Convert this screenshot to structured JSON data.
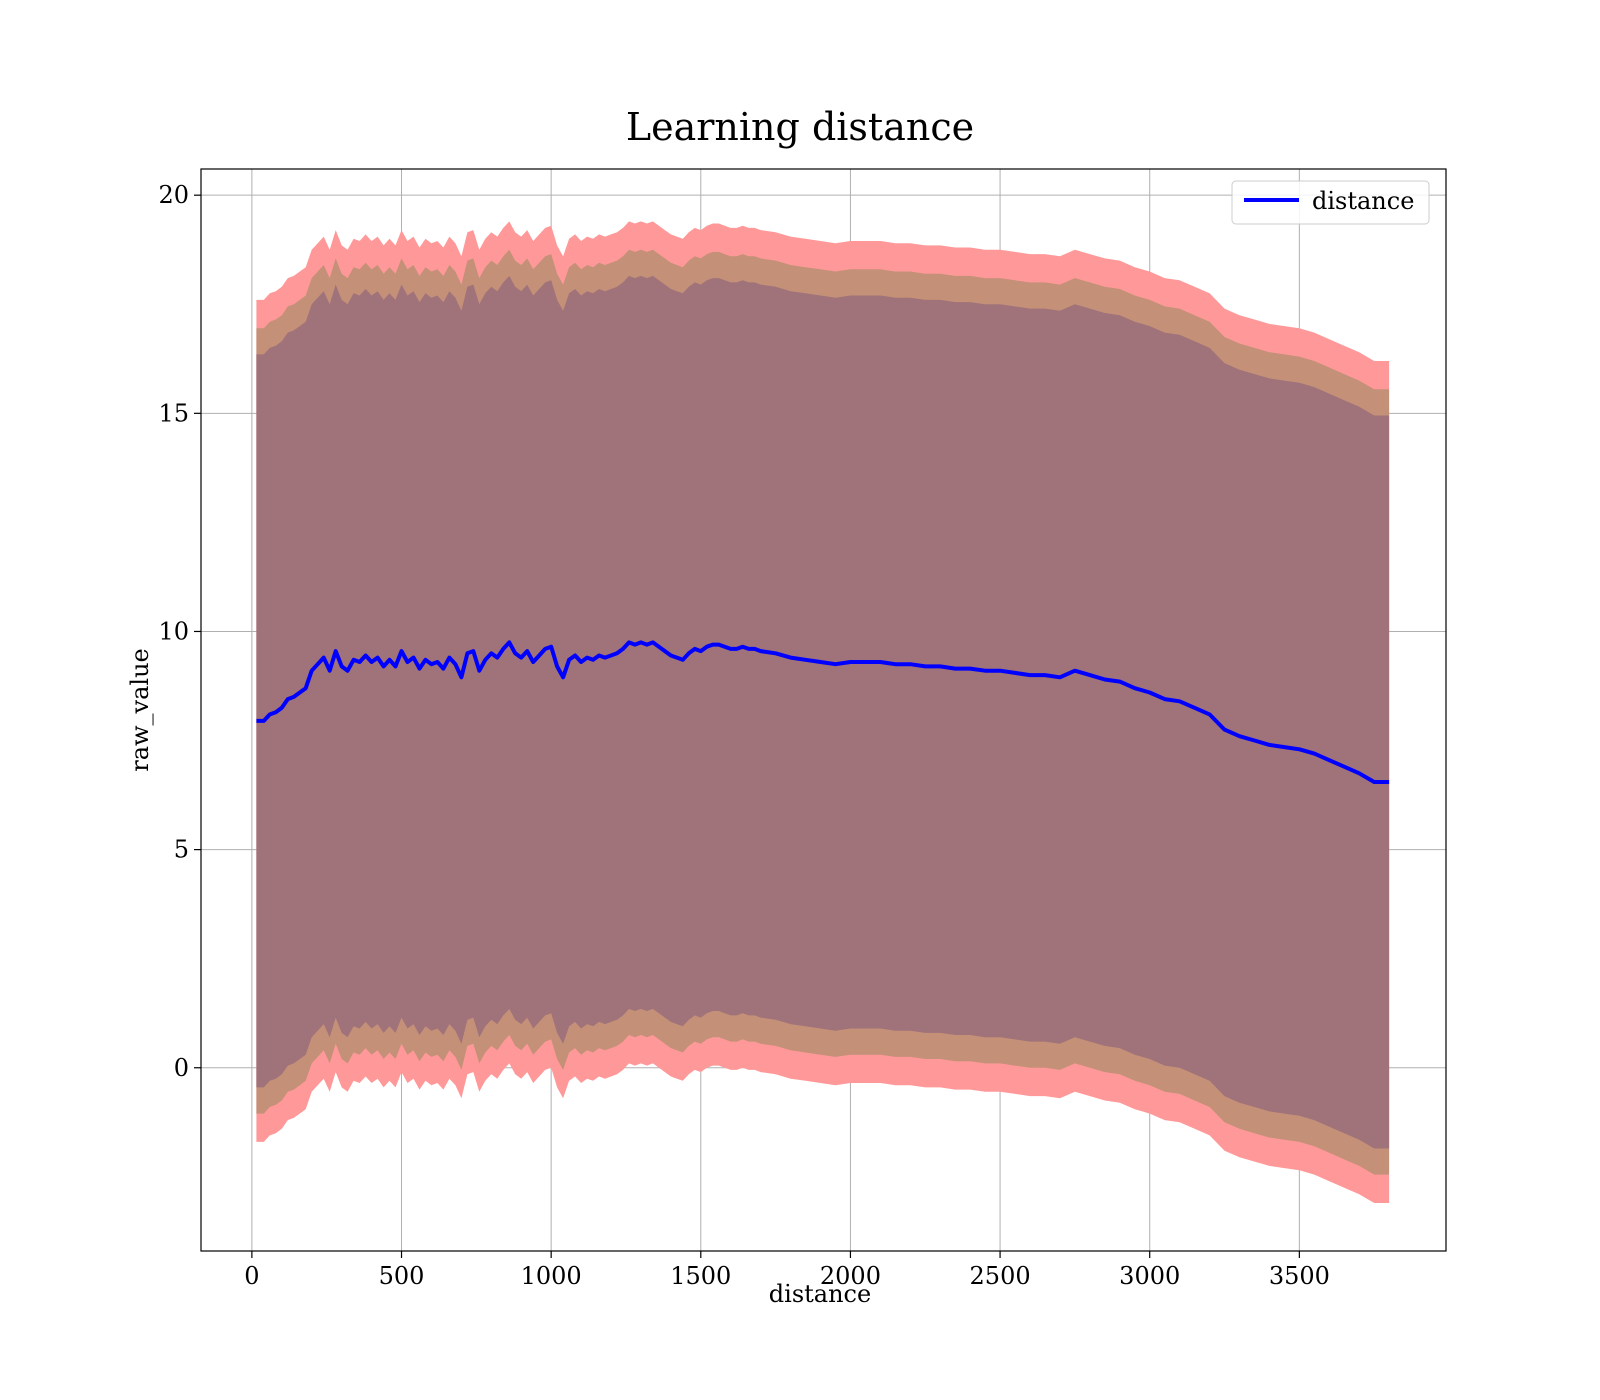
{
  "chart_data": {
    "type": "line",
    "title": "Learning distance",
    "xlabel": "distance",
    "ylabel": "raw_value",
    "xlim": [
      -170,
      3990
    ],
    "ylim": [
      -4.2,
      20.6
    ],
    "x_ticks": [
      0,
      500,
      1000,
      1500,
      2000,
      2500,
      3000,
      3500
    ],
    "y_ticks": [
      0,
      5,
      10,
      15,
      20
    ],
    "grid": true,
    "legend_position": "top-right",
    "colors": {
      "line": "#0000ff",
      "outer_band": "#ff9999",
      "middle_band": "#c49078",
      "inner_band": "#a0727a"
    },
    "series": [
      {
        "name": "distance",
        "x": [
          15,
          40,
          60,
          80,
          100,
          120,
          140,
          160,
          180,
          200,
          220,
          240,
          260,
          280,
          300,
          320,
          340,
          360,
          380,
          400,
          420,
          440,
          460,
          480,
          500,
          520,
          540,
          560,
          580,
          600,
          620,
          640,
          660,
          680,
          700,
          720,
          740,
          760,
          780,
          800,
          820,
          840,
          860,
          880,
          900,
          920,
          940,
          960,
          980,
          1000,
          1020,
          1040,
          1060,
          1080,
          1100,
          1120,
          1140,
          1160,
          1180,
          1200,
          1220,
          1240,
          1260,
          1280,
          1300,
          1320,
          1340,
          1360,
          1380,
          1400,
          1420,
          1440,
          1460,
          1480,
          1500,
          1520,
          1540,
          1560,
          1580,
          1600,
          1620,
          1640,
          1660,
          1680,
          1700,
          1750,
          1800,
          1850,
          1900,
          1950,
          2000,
          2050,
          2100,
          2150,
          2200,
          2250,
          2300,
          2350,
          2400,
          2450,
          2500,
          2550,
          2600,
          2650,
          2700,
          2750,
          2800,
          2850,
          2900,
          2950,
          3000,
          3050,
          3100,
          3150,
          3200,
          3250,
          3300,
          3350,
          3400,
          3450,
          3500,
          3550,
          3600,
          3650,
          3700,
          3750,
          3800
        ],
        "values": [
          7.95,
          7.95,
          8.1,
          8.15,
          8.25,
          8.45,
          8.5,
          8.6,
          8.7,
          9.1,
          9.25,
          9.4,
          9.1,
          9.55,
          9.2,
          9.1,
          9.35,
          9.3,
          9.45,
          9.3,
          9.4,
          9.2,
          9.35,
          9.2,
          9.55,
          9.3,
          9.4,
          9.15,
          9.35,
          9.25,
          9.3,
          9.15,
          9.4,
          9.25,
          8.95,
          9.5,
          9.55,
          9.1,
          9.35,
          9.5,
          9.4,
          9.6,
          9.75,
          9.5,
          9.4,
          9.55,
          9.3,
          9.45,
          9.6,
          9.65,
          9.2,
          8.95,
          9.35,
          9.45,
          9.3,
          9.4,
          9.35,
          9.45,
          9.4,
          9.45,
          9.5,
          9.6,
          9.75,
          9.7,
          9.75,
          9.7,
          9.75,
          9.65,
          9.55,
          9.45,
          9.4,
          9.35,
          9.5,
          9.6,
          9.55,
          9.65,
          9.7,
          9.7,
          9.65,
          9.6,
          9.6,
          9.65,
          9.6,
          9.6,
          9.55,
          9.5,
          9.4,
          9.35,
          9.3,
          9.25,
          9.3,
          9.3,
          9.3,
          9.25,
          9.25,
          9.2,
          9.2,
          9.15,
          9.15,
          9.1,
          9.1,
          9.05,
          9.0,
          9.0,
          8.95,
          9.1,
          9.0,
          8.9,
          8.85,
          8.7,
          8.6,
          8.45,
          8.4,
          8.25,
          8.1,
          7.75,
          7.6,
          7.5,
          7.4,
          7.35,
          7.3,
          7.2,
          7.05,
          6.9,
          6.75,
          6.55,
          6.55
        ],
        "band_half_widths": {
          "inner": 8.4,
          "middle": 9.0,
          "outer": 9.65
        }
      }
    ]
  }
}
